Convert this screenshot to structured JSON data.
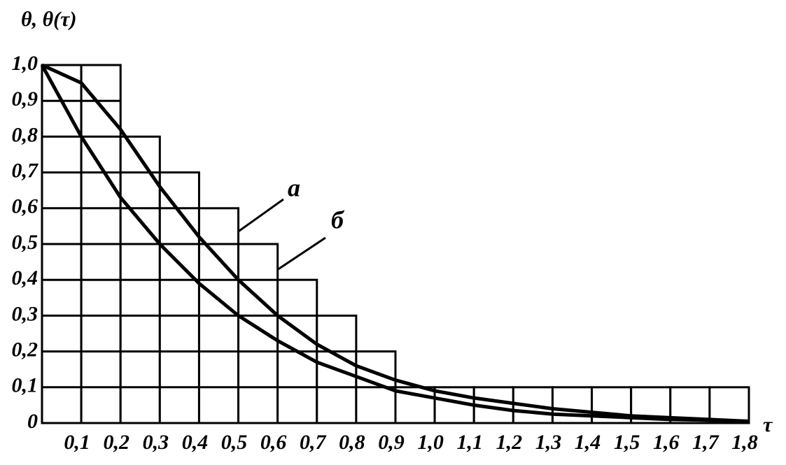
{
  "chart_data": {
    "type": "line",
    "y_label": "θ, θ(τ)",
    "x_label": "τ",
    "x": [
      0,
      0.1,
      0.2,
      0.3,
      0.4,
      0.5,
      0.6,
      0.7,
      0.8,
      0.9,
      1.0,
      1.1,
      1.2,
      1.3,
      1.4,
      1.5,
      1.6,
      1.7,
      1.8
    ],
    "series": [
      {
        "name": "а",
        "color": "#000000",
        "values": [
          1,
          0.95,
          0.82,
          0.66,
          0.52,
          0.4,
          0.3,
          0.22,
          0.16,
          0.12,
          0.09,
          0.07,
          0.055,
          0.04,
          0.03,
          0.02,
          0.015,
          0.01,
          0.005
        ]
      },
      {
        "name": "б",
        "color": "#000000",
        "values": [
          1,
          0.8,
          0.63,
          0.5,
          0.39,
          0.3,
          0.23,
          0.17,
          0.13,
          0.09,
          0.07,
          0.05,
          0.035,
          0.025,
          0.02,
          0.015,
          0.01,
          0.008,
          0.005
        ]
      }
    ],
    "histogram": {
      "bins": [
        0,
        0.1,
        0.2,
        0.3,
        0.4,
        0.5,
        0.6,
        0.7,
        0.8,
        0.9,
        1.0,
        1.1,
        1.2,
        1.3,
        1.4,
        1.5,
        1.6,
        1.7,
        1.8
      ],
      "counts": [
        1,
        1,
        0.8,
        0.7,
        0.6,
        0.5,
        0.4,
        0.3,
        0.2,
        0.1,
        0.1,
        0.1,
        0.1,
        0.1,
        0.1,
        0.1,
        0.1,
        0.1
      ]
    },
    "xlim": [
      0,
      1.8
    ],
    "ylim": [
      0,
      1
    ],
    "xticks": [
      {
        "value": 0.1,
        "label": "0,1"
      },
      {
        "value": 0.2,
        "label": "0,2"
      },
      {
        "value": 0.3,
        "label": "0,3"
      },
      {
        "value": 0.4,
        "label": "0,4"
      },
      {
        "value": 0.5,
        "label": "0,5"
      },
      {
        "value": 0.6,
        "label": "0,6"
      },
      {
        "value": 0.7,
        "label": "0,7"
      },
      {
        "value": 0.8,
        "label": "0,8"
      },
      {
        "value": 0.9,
        "label": "0,9"
      },
      {
        "value": 1.0,
        "label": "1,0"
      },
      {
        "value": 1.1,
        "label": "1,1"
      },
      {
        "value": 1.2,
        "label": "1,2"
      },
      {
        "value": 1.3,
        "label": "1,3"
      },
      {
        "value": 1.4,
        "label": "1,4"
      },
      {
        "value": 1.5,
        "label": "1,5"
      },
      {
        "value": 1.6,
        "label": "1,6"
      },
      {
        "value": 1.7,
        "label": "1,7"
      },
      {
        "value": 1.8,
        "label": "1,8"
      }
    ],
    "yticks": [
      0,
      {
        "value": 0.1,
        "label": "0,1"
      },
      {
        "value": 0.2,
        "label": "0,2"
      },
      {
        "value": 0.3,
        "label": "0,3"
      },
      {
        "value": 0.4,
        "label": "0,4"
      },
      {
        "value": 0.5,
        "label": "0,5"
      },
      {
        "value": 0.6,
        "label": "0,6"
      },
      {
        "value": 0.7,
        "label": "0,7"
      },
      {
        "value": 0.8,
        "label": "0,8"
      },
      {
        "value": 0.9,
        "label": "0,9"
      },
      {
        "value": 1.0,
        "label": "1,0"
      }
    ]
  }
}
